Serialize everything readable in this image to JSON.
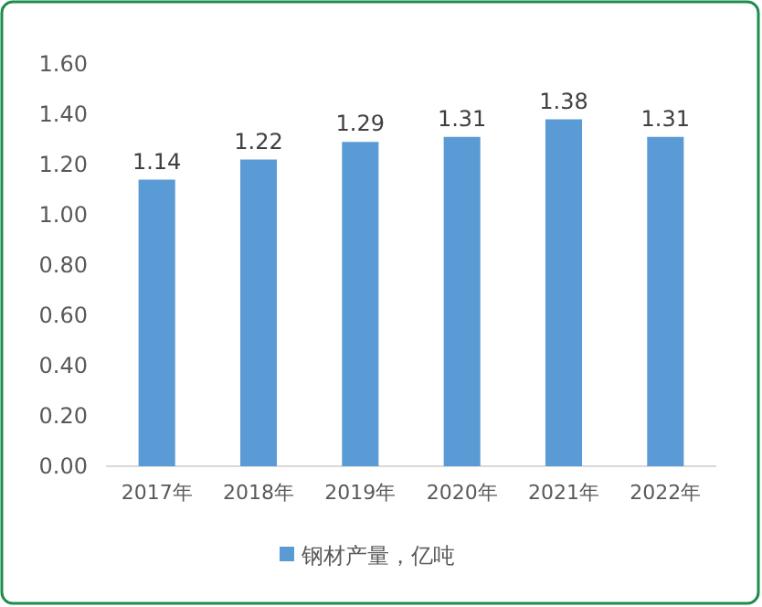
{
  "chart_data": {
    "type": "bar",
    "categories": [
      "2017年",
      "2018年",
      "2019年",
      "2020年",
      "2021年",
      "2022年"
    ],
    "series": [
      {
        "name": "钢材产量，亿吨",
        "color": "#5b9bd5",
        "values": [
          1.14,
          1.22,
          1.29,
          1.31,
          1.38,
          1.31
        ]
      }
    ],
    "ylim": [
      0,
      1.6
    ],
    "yticks": [
      {
        "value": 0,
        "label": "0.00"
      },
      {
        "value": 0.2,
        "label": "0.20"
      },
      {
        "value": 0.4,
        "label": "0.40"
      },
      {
        "value": 0.6,
        "label": "0.60"
      },
      {
        "value": 0.8,
        "label": "0.80"
      },
      {
        "value": 1.0,
        "label": "1.00"
      },
      {
        "value": 1.2,
        "label": "1.20"
      },
      {
        "value": 1.4,
        "label": "1.40"
      },
      {
        "value": 1.6,
        "label": "1.60"
      }
    ],
    "data_labels": true,
    "legend": "bottom",
    "grid": false
  }
}
